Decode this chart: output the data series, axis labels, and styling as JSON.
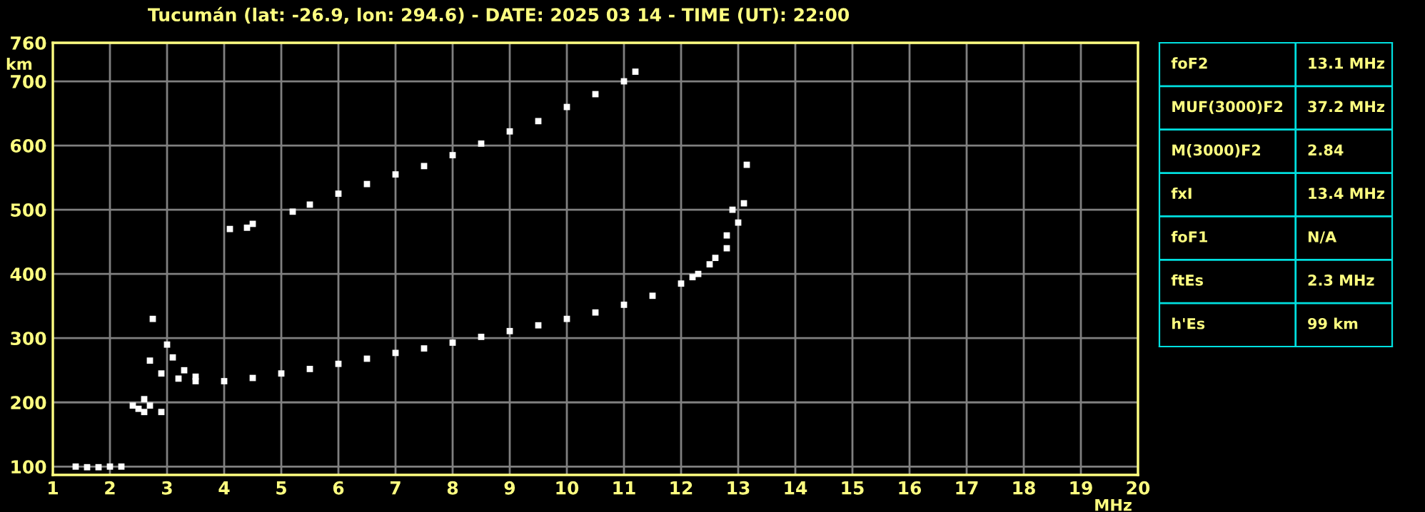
{
  "chart_data": [
    {
      "type": "scatter",
      "title": "Tucumán (lat: -26.9, lon: 294.6) - DATE: 2025 03 14 - TIME (UT): 22:00",
      "xlabel": "MHz",
      "ylabel": "km",
      "xlim": [
        1,
        20
      ],
      "ylim": [
        87,
        760
      ],
      "xticks": [
        1,
        2,
        3,
        4,
        5,
        6,
        7,
        8,
        9,
        10,
        11,
        12,
        13,
        14,
        15,
        16,
        17,
        18,
        19,
        20
      ],
      "yticks": [
        100,
        200,
        300,
        400,
        500,
        600,
        700,
        760
      ],
      "grid": true,
      "marker": "square",
      "legend": false,
      "series": [
        {
          "color": "#ffffff",
          "x": [
            2.7,
            2.9,
            3.2,
            3.5,
            4.0,
            4.5,
            5.0,
            5.5,
            6.0,
            6.5,
            7.0,
            7.5,
            8.0,
            8.5,
            9.0,
            9.5,
            10.0,
            10.5,
            11.0,
            11.5,
            12.0,
            12.3,
            12.6,
            12.8,
            12.9
          ],
          "values": [
            265,
            245,
            237,
            233,
            233,
            238,
            245,
            252,
            260,
            268,
            277,
            284,
            293,
            302,
            311,
            320,
            330,
            340,
            352,
            366,
            385,
            400,
            425,
            460,
            500
          ]
        },
        {
          "color": "#ffffff",
          "x": [
            3.0,
            3.1,
            3.3,
            3.5,
            12.2,
            12.5,
            12.8,
            13.0,
            13.1,
            13.15
          ],
          "values": [
            290,
            270,
            250,
            240,
            395,
            415,
            440,
            480,
            510,
            570
          ]
        },
        {
          "color": "#ffffff",
          "x": [
            4.1,
            4.4,
            4.5,
            5.2,
            5.5,
            6.0,
            6.5,
            7.0,
            7.5,
            8.0,
            8.5,
            9.0,
            9.5,
            10.0,
            10.5,
            11.0,
            11.2
          ],
          "values": [
            470,
            472,
            478,
            497,
            508,
            525,
            540,
            555,
            568,
            585,
            603,
            622,
            638,
            660,
            680,
            700,
            715
          ]
        },
        {
          "color": "#ffffff",
          "x": [
            1.4,
            1.6,
            1.8,
            2.0,
            2.2,
            2.4,
            2.5,
            2.6,
            2.7,
            2.9,
            2.6,
            2.75
          ],
          "values": [
            100,
            99,
            99,
            100,
            100,
            195,
            190,
            185,
            195,
            185,
            205,
            330
          ]
        }
      ]
    },
    {
      "type": "other",
      "annotations": [
        "foF2",
        "13.1 MHz",
        "MUF(3000)F2",
        "37.2 MHz",
        "M(3000)F2",
        "2.84",
        "fxI",
        "13.4 MHz",
        "foF1",
        "N/A",
        "ftEs",
        "2.3 MHz",
        "h'Es",
        "99 km"
      ]
    }
  ]
}
